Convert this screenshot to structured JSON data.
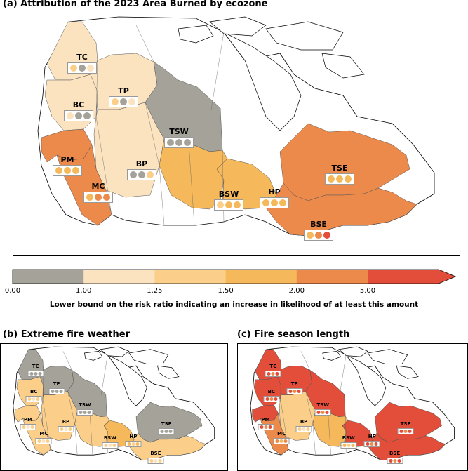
{
  "colors": {
    "bins": [
      "#a5a29a",
      "#fbe3c0",
      "#fbcf8a",
      "#f5b85a",
      "#ec8a4c",
      "#e24e3a"
    ],
    "land": "#ffffff",
    "box_bg": "#ffffff"
  },
  "panel_a": {
    "title": "(a) Attribution of the 2023 Area Burned by ecozone",
    "ecozones": [
      {
        "code": "TC",
        "fill": 1,
        "dots": [
          2,
          0,
          1
        ]
      },
      {
        "code": "TP",
        "fill": 1,
        "dots": [
          2,
          0,
          1
        ]
      },
      {
        "code": "BC",
        "fill": 1,
        "dots": [
          1,
          0,
          0
        ]
      },
      {
        "code": "TSW",
        "fill": 0,
        "dots": [
          0,
          0,
          0
        ]
      },
      {
        "code": "BP",
        "fill": 1,
        "dots": [
          0,
          0,
          2
        ]
      },
      {
        "code": "PM",
        "fill": 4,
        "dots": [
          3,
          3,
          3
        ]
      },
      {
        "code": "MC",
        "fill": 4,
        "dots": [
          3,
          4,
          4
        ]
      },
      {
        "code": "BSW",
        "fill": 3,
        "dots": [
          2,
          3,
          3
        ]
      },
      {
        "code": "HP",
        "fill": 3,
        "dots": [
          3,
          3,
          3
        ]
      },
      {
        "code": "TSE",
        "fill": 4,
        "dots": [
          3,
          3,
          3
        ]
      },
      {
        "code": "BSE",
        "fill": 4,
        "dots": [
          3,
          4,
          5
        ]
      }
    ]
  },
  "colorbar": {
    "ticks": [
      "0.00",
      "1.00",
      "1.25",
      "1.50",
      "2.00",
      "5.00"
    ],
    "label": "Lower bound on the risk ratio indicating an increase in likelihood of at least this amount"
  },
  "panel_b": {
    "title": "(b) Extreme fire weather",
    "ecozones": [
      {
        "code": "TC",
        "fill": 0
      },
      {
        "code": "TP",
        "fill": 0
      },
      {
        "code": "BC",
        "fill": 2
      },
      {
        "code": "TSW",
        "fill": 0
      },
      {
        "code": "BP",
        "fill": 2
      },
      {
        "code": "PM",
        "fill": 2
      },
      {
        "code": "MC",
        "fill": 2
      },
      {
        "code": "BSW",
        "fill": 2
      },
      {
        "code": "HP",
        "fill": 3
      },
      {
        "code": "TSE",
        "fill": 0
      },
      {
        "code": "BSE",
        "fill": 2
      }
    ]
  },
  "panel_c": {
    "title": "(c) Fire season length",
    "ecozones": [
      {
        "code": "TC",
        "fill": 5
      },
      {
        "code": "TP",
        "fill": 5
      },
      {
        "code": "BC",
        "fill": 5
      },
      {
        "code": "TSW",
        "fill": 5
      },
      {
        "code": "BP",
        "fill": 2
      },
      {
        "code": "PM",
        "fill": 5
      },
      {
        "code": "MC",
        "fill": 4
      },
      {
        "code": "BSW",
        "fill": 3
      },
      {
        "code": "HP",
        "fill": 5
      },
      {
        "code": "TSE",
        "fill": 5
      },
      {
        "code": "BSE",
        "fill": 5
      }
    ]
  }
}
